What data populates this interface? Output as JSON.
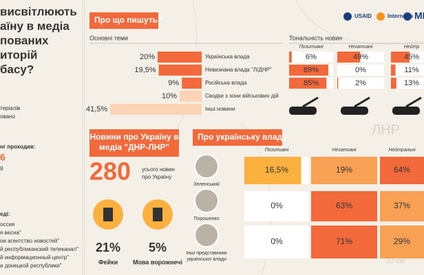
{
  "left": {
    "title_lines": [
      "висвітлюють",
      "аїну в медіа",
      "пованих",
      "иторій",
      "басу?"
    ],
    "notes": [
      "теріалів",
      "овано"
    ],
    "monitoring_title": "нг проходив:",
    "monitoring_dates": [
      "6",
      "9"
    ],
    "media_title": "еді:",
    "media": [
      "оссия",
      "я весна\"",
      "ое агентство новостей\"",
      "й республиканский телеканал\"",
      "й информационный центр\"",
      "и донецкой республики\""
    ]
  },
  "logos": [
    "USAID",
    "Internews",
    "МЕ"
  ],
  "map_labels": [
    "ЛНР",
    "30 км"
  ],
  "topics": {
    "header": "Про що пишуть?",
    "col_title": "Основні теми",
    "rows": [
      {
        "name": "Українська влада",
        "share": {
          "value": 20,
          "label": "20%"
        }
      },
      {
        "name": "Невизнана влада \"Л/ДНР\"",
        "share": {
          "value": 19.5,
          "label": "19,5%"
        }
      },
      {
        "name": "Російська влада",
        "share": {
          "value": 9,
          "label": "9%"
        }
      },
      {
        "name": "Сводки з зони військових дій",
        "share": {
          "value": 10,
          "label": "10%"
        }
      },
      {
        "name": "Інші новини",
        "share": {
          "value": 41.5,
          "label": "41,5%"
        }
      }
    ],
    "tone_title": "Тональність новин",
    "tone_columns": [
      "Позитивні",
      "Негативні",
      "Нейтр"
    ],
    "tone": [
      [
        {
          "value": 6,
          "label": "6%"
        },
        {
          "value": 49,
          "label": "49%"
        },
        {
          "value": 45,
          "label": "45%"
        }
      ],
      [
        {
          "value": 89,
          "label": "89%"
        },
        {
          "value": 0,
          "label": "0%"
        },
        {
          "value": 11,
          "label": "11%"
        }
      ],
      [
        {
          "value": 85,
          "label": "85%"
        },
        {
          "value": 2,
          "label": "2%"
        },
        {
          "value": 13,
          "label": "13%"
        }
      ]
    ]
  },
  "ukraine": {
    "header_lines": [
      "Новини про Україну в",
      "медіа \"ДНР-ЛНР\""
    ],
    "total": "280",
    "total_caption": [
      "усього новин",
      "про Україну"
    ],
    "stats": [
      {
        "value": {
          "value": 21,
          "label": "21%"
        },
        "name": "Фейки"
      },
      {
        "value": {
          "value": 5,
          "label": "5%"
        },
        "name": "Мова ворожнечі"
      }
    ]
  },
  "authorities": {
    "header": "Про українську владу",
    "columns": [
      "Позитивні",
      "Негативні",
      "Нейтральні"
    ],
    "rows": [
      {
        "name": [
          "Зеленський"
        ],
        "values": [
          {
            "value": 16.5,
            "label": "16,5%"
          },
          {
            "value": 19,
            "label": "19%"
          },
          {
            "value": 64,
            "label": "64%"
          }
        ]
      },
      {
        "name": [
          "Порошенко"
        ],
        "values": [
          {
            "value": 0,
            "label": "0%"
          },
          {
            "value": 63,
            "label": "63%"
          },
          {
            "value": 37,
            "label": "37%"
          }
        ]
      },
      {
        "name": [
          "Інші представники",
          "української влади"
        ],
        "values": [
          {
            "value": 0,
            "label": "0%"
          },
          {
            "value": 71,
            "label": "71%"
          },
          {
            "value": 29,
            "label": "29%"
          }
        ]
      }
    ]
  }
}
